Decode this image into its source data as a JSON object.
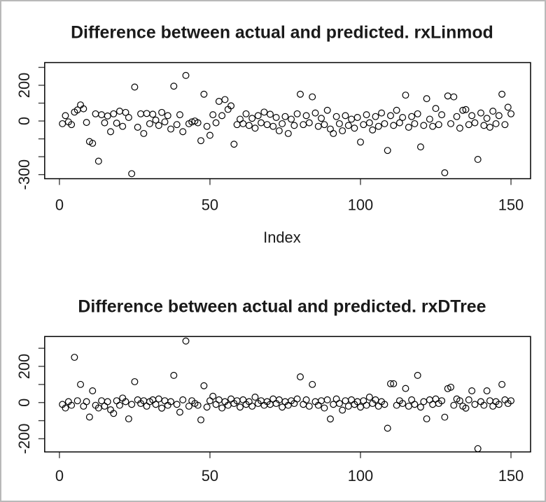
{
  "window": {
    "background": "#ffffff",
    "border_color": "#b9b9b9"
  },
  "chart_data": [
    {
      "type": "scatter",
      "title": "Difference between actual and predicted. rxLinmod",
      "xlabel": "Index",
      "ylabel": "",
      "x_rule": "index 1..150",
      "n": 150,
      "marker": "open-circle",
      "marker_color": "#000000",
      "grid": false,
      "xlim": [
        -4.9,
        156.5
      ],
      "ylim": [
        -323,
        327
      ],
      "xticks": [
        0,
        50,
        100,
        150
      ],
      "yticks": [
        300,
        200,
        100,
        0,
        -100,
        -200,
        -300
      ],
      "ytick_labels": [
        "",
        "200",
        "",
        "0",
        "",
        "",
        "-300"
      ],
      "y": [
        -15,
        30,
        -5,
        -20,
        50,
        62,
        90,
        68,
        -8,
        -115,
        -125,
        40,
        -225,
        35,
        -10,
        28,
        -60,
        40,
        -12,
        55,
        -30,
        48,
        20,
        -295,
        190,
        -35,
        40,
        -70,
        42,
        -15,
        38,
        5,
        -25,
        48,
        -5,
        30,
        -45,
        195,
        -20,
        35,
        -60,
        255,
        -15,
        -5,
        0,
        -10,
        -110,
        150,
        -30,
        -80,
        35,
        -10,
        110,
        30,
        120,
        65,
        85,
        -130,
        -20,
        10,
        -15,
        40,
        -25,
        15,
        -40,
        30,
        -10,
        50,
        -20,
        38,
        -30,
        20,
        -55,
        -15,
        25,
        -70,
        10,
        -25,
        40,
        150,
        -20,
        30,
        -10,
        135,
        45,
        -30,
        15,
        -20,
        60,
        -45,
        -70,
        25,
        -15,
        -55,
        30,
        -25,
        10,
        -40,
        20,
        -118,
        -20,
        35,
        -10,
        -50,
        25,
        -30,
        45,
        -15,
        -165,
        30,
        -25,
        60,
        -10,
        20,
        145,
        -35,
        25,
        -15,
        40,
        -145,
        -25,
        125,
        10,
        -30,
        70,
        -20,
        35,
        -290,
        140,
        -15,
        135,
        25,
        -40,
        60,
        64,
        -20,
        30,
        -10,
        -215,
        45,
        -25,
        15,
        -35,
        55,
        -15,
        30,
        150,
        -20,
        77,
        40
      ]
    },
    {
      "type": "scatter",
      "title": "Difference between actual and predicted. rxDTree",
      "xlabel": "",
      "ylabel": "",
      "x_rule": "index 1..150",
      "n": 150,
      "marker": "open-circle",
      "marker_color": "#000000",
      "grid": false,
      "xlim": [
        -4.9,
        156.5
      ],
      "ylim": [
        -273,
        365
      ],
      "xticks": [
        0,
        50,
        100,
        150
      ],
      "yticks": [
        300,
        200,
        100,
        0,
        -100,
        -200
      ],
      "ytick_labels": [
        "",
        "200",
        "",
        "0",
        "",
        "-200"
      ],
      "y": [
        -10,
        -30,
        5,
        -15,
        250,
        10,
        100,
        -20,
        5,
        -80,
        65,
        -15,
        -30,
        10,
        -20,
        5,
        -40,
        -60,
        10,
        -15,
        25,
        5,
        -90,
        -10,
        115,
        15,
        -5,
        10,
        -20,
        5,
        15,
        -10,
        20,
        -31,
        10,
        -15,
        5,
        150,
        -10,
        -53,
        15,
        340,
        -20,
        10,
        -5,
        -15,
        -96,
        93,
        -25,
        10,
        35,
        -10,
        15,
        -30,
        5,
        -15,
        20,
        -5,
        10,
        -25,
        15,
        -10,
        5,
        -20,
        30,
        -5,
        10,
        -15,
        5,
        -10,
        20,
        -5,
        15,
        -25,
        5,
        -15,
        10,
        -5,
        20,
        142,
        -10,
        15,
        -20,
        100,
        5,
        -15,
        10,
        -30,
        15,
        -91,
        -10,
        20,
        -5,
        -42,
        10,
        -20,
        15,
        -10,
        5,
        -25,
        10,
        -15,
        30,
        -5,
        15,
        -20,
        5,
        -10,
        -142,
        104,
        104,
        -15,
        10,
        -5,
        78,
        -20,
        15,
        -10,
        150,
        -25,
        5,
        -90,
        15,
        -10,
        20,
        -5,
        10,
        -81,
        77,
        85,
        -15,
        20,
        10,
        -20,
        -31,
        15,
        65,
        -10,
        -255,
        5,
        -15,
        65,
        10,
        -20,
        5,
        -10,
        100,
        15,
        -5,
        10
      ]
    }
  ]
}
